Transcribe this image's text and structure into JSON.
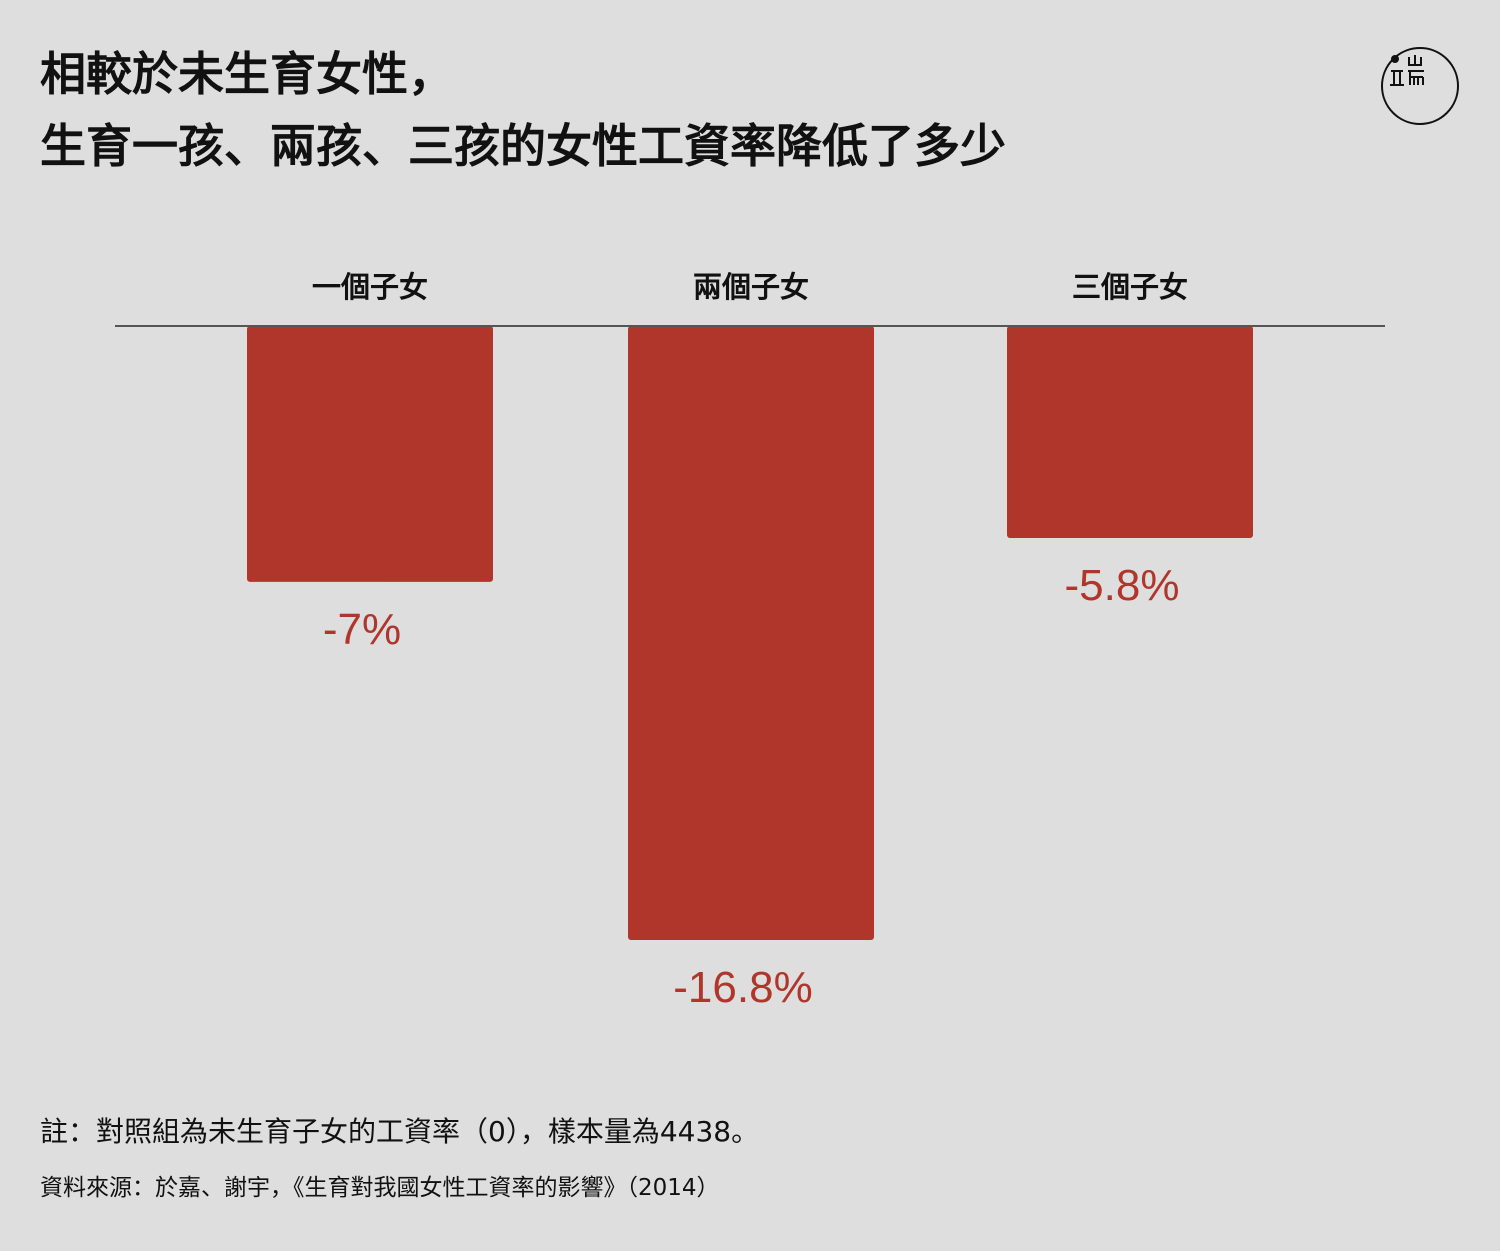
{
  "title": {
    "line1": "相較於未生育女性，",
    "line2": "生育一孩、兩孩、三孩的女性工資率降低了多少"
  },
  "logo": {
    "icon": "initium-logo-icon"
  },
  "chart_data": {
    "type": "bar",
    "categories": [
      "一個子女",
      "兩個子女",
      "三個子女"
    ],
    "values": [
      -7,
      -16.8,
      -5.8
    ],
    "value_labels": [
      "-7%",
      "-16.8%",
      "-5.8%"
    ],
    "unit": "%",
    "ylim": [
      -20,
      0
    ],
    "baseline": 0,
    "xlabel": "",
    "ylabel": "",
    "grid": false,
    "legend": "none",
    "colors": {
      "bar": "#b0362b",
      "label": "#b0362b",
      "axis": "#555555"
    }
  },
  "footer": {
    "note": "註：對照組為未生育子女的工資率（0），樣本量為4438。",
    "source": "資料來源：於嘉、謝宇，《生育對我國女性工資率的影響》（2014）"
  }
}
